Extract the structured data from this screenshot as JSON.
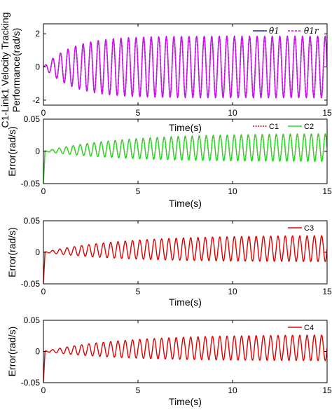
{
  "chart_data": [
    {
      "type": "line",
      "title": "",
      "xlabel": "Time(s)",
      "ylabel": [
        "C1-Link1 Velocity Tracking",
        "Performance(rad/s)"
      ],
      "xlim": [
        0,
        15
      ],
      "ylim": [
        -2.3,
        2.6
      ],
      "xticks": [
        "0",
        "5",
        "10",
        "15"
      ],
      "yticks": [
        "2",
        "0",
        "-2"
      ],
      "yticks_values": [
        2,
        0,
        -2
      ],
      "legend_position": "top-right",
      "series": [
        {
          "name": "θ̇1",
          "color": "#1f1fb4",
          "style": "solid",
          "signal": {
            "amp": 1.85,
            "freq": 2.5,
            "tau": 1.5,
            "offset": 0
          }
        },
        {
          "name": "θ̇1r",
          "color": "#e400e4",
          "style": "dashed",
          "signal": {
            "amp": 1.85,
            "freq": 2.5,
            "tau": 1.5,
            "offset": 0
          }
        }
      ],
      "fill_color": "#9a3ee8"
    },
    {
      "type": "line",
      "title": "",
      "xlabel": "Time(s)",
      "ylabel": "Error(rad/s)",
      "xlim": [
        0,
        15
      ],
      "ylim": [
        -0.05,
        0.05
      ],
      "xticks": [
        "0",
        "5",
        "10",
        "15"
      ],
      "yticks": [
        "0.05",
        "0",
        "-0.05"
      ],
      "yticks_values": [
        0.05,
        0,
        -0.05
      ],
      "legend_position": "top-right",
      "series": [
        {
          "name": "C1",
          "color": "#e00000",
          "style": "dotted",
          "signal": {
            "amp": 0.021,
            "freq": 2.7,
            "tau": 4,
            "offset": 0.006
          }
        },
        {
          "name": "C2",
          "color": "#22dd22",
          "style": "solid",
          "signal": {
            "amp": 0.022,
            "freq": 2.7,
            "tau": 4,
            "offset": 0.006
          }
        }
      ]
    },
    {
      "type": "line",
      "title": "",
      "xlabel": "Time(s)",
      "ylabel": "Error(rad/s)",
      "xlim": [
        0,
        15
      ],
      "ylim": [
        -0.05,
        0.05
      ],
      "xticks": [
        "0",
        "5",
        "10",
        "15"
      ],
      "yticks": [
        "0.05",
        "0",
        "-0.05"
      ],
      "yticks_values": [
        0.05,
        0,
        -0.05
      ],
      "legend_position": "top-right",
      "series": [
        {
          "name": "C3",
          "color": "#e00000",
          "style": "solid",
          "signal": {
            "amp": 0.021,
            "freq": 2.6,
            "tau": 4,
            "offset": 0.006
          }
        }
      ]
    },
    {
      "type": "line",
      "title": "",
      "xlabel": "Time(s)",
      "ylabel": "Error(rad/s)",
      "xlim": [
        0,
        15
      ],
      "ylim": [
        -0.05,
        0.05
      ],
      "xticks": [
        "0",
        "5",
        "10",
        "15"
      ],
      "yticks": [
        "0.05",
        "0",
        "-0.05"
      ],
      "yticks_values": [
        0.05,
        0,
        -0.05
      ],
      "legend_position": "top-right",
      "series": [
        {
          "name": "C4",
          "color": "#e00000",
          "style": "solid",
          "signal": {
            "amp": 0.021,
            "freq": 2.6,
            "tau": 4,
            "offset": 0.006
          }
        }
      ]
    }
  ]
}
